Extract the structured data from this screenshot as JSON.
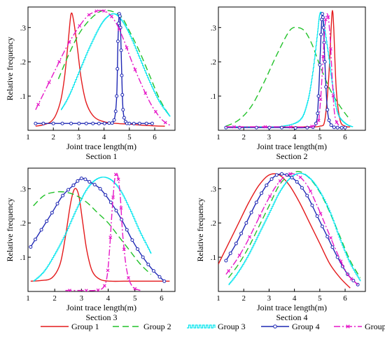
{
  "figure": {
    "legend_position": "bottom"
  },
  "legend": [
    {
      "name": "Group 1",
      "color": "#e41a1c",
      "dash": "",
      "marker": "none"
    },
    {
      "name": "Group 2",
      "color": "#22c22a",
      "dash": "9,5",
      "marker": "none"
    },
    {
      "name": "Group 3",
      "color": "#00e5ee",
      "dash": "",
      "marker": "stairs"
    },
    {
      "name": "Group 4",
      "color": "#1f28b4",
      "dash": "",
      "marker": "circle"
    },
    {
      "name": "Group 5",
      "color": "#e619c8",
      "dash": "9,3,2,3",
      "marker": "x"
    }
  ],
  "chart_data": [
    {
      "type": "line",
      "title": "Section 1",
      "xlabel": "Joint trace length(m)",
      "ylabel": "Relative frequency",
      "xlim": [
        1,
        6.8
      ],
      "ylim": [
        0,
        0.36
      ],
      "xticks": [
        1,
        2,
        3,
        4,
        5,
        6
      ],
      "yticks": [
        0.1,
        0.2,
        0.3
      ],
      "grid": false,
      "series": [
        {
          "name": "Group 1",
          "x": [
            1.3,
            1.6,
            1.9,
            2.1,
            2.3,
            2.45,
            2.6,
            2.7,
            2.8,
            2.95,
            3.1,
            3.3,
            3.6,
            4.0,
            4.5,
            5.0,
            5.5,
            6.0,
            6.4
          ],
          "y": [
            0.012,
            0.016,
            0.025,
            0.045,
            0.09,
            0.16,
            0.27,
            0.34,
            0.32,
            0.24,
            0.15,
            0.08,
            0.04,
            0.025,
            0.02,
            0.018,
            0.015,
            0.013,
            0.012
          ]
        },
        {
          "name": "Group 2",
          "x": [
            2.2,
            2.6,
            3.0,
            3.4,
            3.8,
            4.1,
            4.4,
            4.7,
            5.0,
            5.4,
            5.8,
            6.2,
            6.6
          ],
          "y": [
            0.15,
            0.22,
            0.28,
            0.32,
            0.345,
            0.35,
            0.345,
            0.33,
            0.29,
            0.23,
            0.16,
            0.09,
            0.04
          ]
        },
        {
          "name": "Group 3",
          "x": [
            2.3,
            2.6,
            3.0,
            3.4,
            3.8,
            4.1,
            4.4,
            4.7,
            5.0,
            5.4,
            5.8,
            6.2,
            6.6
          ],
          "y": [
            0.06,
            0.1,
            0.17,
            0.24,
            0.3,
            0.33,
            0.34,
            0.32,
            0.28,
            0.21,
            0.14,
            0.08,
            0.04
          ]
        },
        {
          "name": "Group 4",
          "x": [
            1.3,
            2.0,
            2.7,
            3.3,
            3.8,
            4.2,
            4.4,
            4.5,
            4.55,
            4.6,
            4.65,
            4.7,
            4.75,
            4.85,
            5.0,
            5.4,
            5.9
          ],
          "y": [
            0.02,
            0.02,
            0.02,
            0.02,
            0.02,
            0.021,
            0.03,
            0.1,
            0.26,
            0.34,
            0.3,
            0.16,
            0.06,
            0.025,
            0.02,
            0.02,
            0.02
          ]
        },
        {
          "name": "Group 5",
          "x": [
            1.3,
            1.7,
            2.1,
            2.5,
            2.9,
            3.3,
            3.6,
            3.9,
            4.2,
            4.5,
            4.8,
            5.1,
            5.5,
            5.9,
            6.3,
            6.6
          ],
          "y": [
            0.06,
            0.12,
            0.18,
            0.24,
            0.29,
            0.33,
            0.345,
            0.35,
            0.34,
            0.31,
            0.26,
            0.2,
            0.13,
            0.07,
            0.03,
            0.015
          ]
        }
      ]
    },
    {
      "type": "line",
      "title": "Section 2",
      "xlabel": "Joint trace length(m)",
      "ylabel": "",
      "xlim": [
        1,
        6.8
      ],
      "ylim": [
        0,
        0.36
      ],
      "xticks": [
        1,
        2,
        3,
        4,
        5,
        6
      ],
      "yticks": [
        0.1,
        0.2,
        0.3
      ],
      "grid": false,
      "series": [
        {
          "name": "Group 1",
          "x": [
            1.3,
            2.5,
            3.5,
            4.5,
            5.0,
            5.2,
            5.35,
            5.45,
            5.5,
            5.55,
            5.65,
            5.8,
            6.0,
            6.2
          ],
          "y": [
            0.01,
            0.01,
            0.01,
            0.01,
            0.012,
            0.03,
            0.15,
            0.3,
            0.35,
            0.3,
            0.12,
            0.03,
            0.012,
            0.01
          ]
        },
        {
          "name": "Group 2",
          "x": [
            1.3,
            1.8,
            2.3,
            2.8,
            3.3,
            3.8,
            4.1,
            4.4,
            4.7,
            5.0,
            5.4,
            5.8,
            6.2
          ],
          "y": [
            0.012,
            0.03,
            0.07,
            0.14,
            0.22,
            0.29,
            0.3,
            0.29,
            0.25,
            0.19,
            0.12,
            0.07,
            0.03
          ]
        },
        {
          "name": "Group 3",
          "x": [
            1.3,
            2.5,
            3.5,
            4.2,
            4.5,
            4.7,
            4.9,
            5.0,
            5.1,
            5.3,
            5.5,
            5.7,
            6.0,
            6.3
          ],
          "y": [
            0.01,
            0.01,
            0.012,
            0.03,
            0.08,
            0.16,
            0.28,
            0.34,
            0.33,
            0.24,
            0.13,
            0.05,
            0.02,
            0.01
          ]
        },
        {
          "name": "Group 4",
          "x": [
            1.3,
            2.5,
            3.5,
            4.5,
            4.85,
            4.95,
            5.05,
            5.1,
            5.15,
            5.2,
            5.3,
            5.45,
            5.7,
            6.0
          ],
          "y": [
            0.008,
            0.008,
            0.008,
            0.008,
            0.02,
            0.1,
            0.28,
            0.34,
            0.3,
            0.2,
            0.06,
            0.015,
            0.008,
            0.008
          ]
        },
        {
          "name": "Group 5",
          "x": [
            1.3,
            2.5,
            3.5,
            4.5,
            4.9,
            5.0,
            5.1,
            5.2,
            5.3,
            5.4,
            5.5,
            5.6,
            5.8
          ],
          "y": [
            0.01,
            0.01,
            0.01,
            0.01,
            0.02,
            0.06,
            0.17,
            0.3,
            0.34,
            0.28,
            0.14,
            0.04,
            0.01
          ]
        }
      ]
    },
    {
      "type": "line",
      "title": "Section 3",
      "xlabel": "Joint trace length(m)",
      "ylabel": "Relative frequency",
      "xlim": [
        1,
        6.5
      ],
      "ylim": [
        0,
        0.36
      ],
      "xticks": [
        1,
        2,
        3,
        4,
        5,
        6
      ],
      "yticks": [
        0.1,
        0.2,
        0.3
      ],
      "grid": false,
      "series": [
        {
          "name": "Group 1",
          "x": [
            1.1,
            1.5,
            1.9,
            2.2,
            2.4,
            2.6,
            2.75,
            2.9,
            3.05,
            3.2,
            3.4,
            3.7,
            4.1,
            4.6,
            5.2,
            5.8,
            6.3
          ],
          "y": [
            0.03,
            0.032,
            0.04,
            0.08,
            0.16,
            0.26,
            0.3,
            0.28,
            0.2,
            0.12,
            0.06,
            0.035,
            0.03,
            0.03,
            0.03,
            0.03,
            0.03
          ]
        },
        {
          "name": "Group 2",
          "x": [
            1.2,
            1.6,
            2.0,
            2.4,
            2.8,
            3.2,
            3.6,
            4.0,
            4.4,
            4.8,
            5.2,
            5.6
          ],
          "y": [
            0.25,
            0.28,
            0.29,
            0.29,
            0.28,
            0.26,
            0.23,
            0.2,
            0.16,
            0.12,
            0.08,
            0.05
          ]
        },
        {
          "name": "Group 3",
          "x": [
            1.2,
            1.6,
            2.0,
            2.4,
            2.8,
            3.2,
            3.6,
            4.0,
            4.4,
            4.8,
            5.2,
            5.6
          ],
          "y": [
            0.03,
            0.06,
            0.11,
            0.17,
            0.24,
            0.3,
            0.33,
            0.33,
            0.3,
            0.24,
            0.17,
            0.11
          ]
        },
        {
          "name": "Group 4",
          "x": [
            1.1,
            1.5,
            1.9,
            2.3,
            2.7,
            3.0,
            3.3,
            3.7,
            4.1,
            4.5,
            4.9,
            5.3,
            5.7,
            6.1
          ],
          "y": [
            0.13,
            0.18,
            0.23,
            0.28,
            0.31,
            0.33,
            0.32,
            0.3,
            0.26,
            0.21,
            0.15,
            0.1,
            0.06,
            0.03
          ]
        },
        {
          "name": "Group 5",
          "x": [
            2.4,
            3.0,
            3.5,
            3.8,
            3.95,
            4.05,
            4.15,
            4.25,
            4.35,
            4.45,
            4.55,
            4.7,
            4.9,
            5.2
          ],
          "y": [
            0.003,
            0.003,
            0.003,
            0.01,
            0.04,
            0.12,
            0.24,
            0.33,
            0.34,
            0.28,
            0.16,
            0.06,
            0.015,
            0.003
          ]
        }
      ]
    },
    {
      "type": "line",
      "title": "Section 4",
      "xlabel": "Joint trace length(m)",
      "ylabel": "Relative frequency",
      "xlim": [
        1,
        6.8
      ],
      "ylim": [
        0,
        0.36
      ],
      "xticks": [
        1,
        2,
        3,
        4,
        5,
        6
      ],
      "yticks": [
        0.1,
        0.2,
        0.3
      ],
      "grid": false,
      "series": [
        {
          "name": "Group 1",
          "x": [
            1.0,
            1.4,
            1.8,
            2.2,
            2.6,
            3.0,
            3.4,
            3.8,
            4.2,
            4.6,
            5.0,
            5.4,
            5.8,
            6.2
          ],
          "y": [
            0.08,
            0.14,
            0.2,
            0.26,
            0.31,
            0.34,
            0.34,
            0.31,
            0.26,
            0.2,
            0.14,
            0.08,
            0.04,
            0.01
          ]
        },
        {
          "name": "Group 2",
          "x": [
            1.4,
            1.8,
            2.2,
            2.6,
            3.0,
            3.4,
            3.8,
            4.2,
            4.6,
            5.0,
            5.4,
            5.8,
            6.2,
            6.6
          ],
          "y": [
            0.04,
            0.08,
            0.13,
            0.19,
            0.25,
            0.31,
            0.34,
            0.35,
            0.33,
            0.29,
            0.23,
            0.16,
            0.09,
            0.04
          ]
        },
        {
          "name": "Group 3",
          "x": [
            1.4,
            1.8,
            2.2,
            2.6,
            3.0,
            3.4,
            3.8,
            4.2,
            4.6,
            5.0,
            5.4,
            5.8,
            6.2,
            6.6
          ],
          "y": [
            0.02,
            0.06,
            0.11,
            0.17,
            0.23,
            0.29,
            0.33,
            0.345,
            0.33,
            0.29,
            0.23,
            0.15,
            0.08,
            0.03
          ]
        },
        {
          "name": "Group 4",
          "x": [
            1.3,
            1.7,
            2.1,
            2.5,
            2.9,
            3.3,
            3.7,
            4.1,
            4.5,
            4.9,
            5.3,
            5.7,
            6.1,
            6.5
          ],
          "y": [
            0.09,
            0.14,
            0.2,
            0.26,
            0.31,
            0.34,
            0.34,
            0.32,
            0.28,
            0.22,
            0.16,
            0.1,
            0.05,
            0.02
          ]
        },
        {
          "name": "Group 5",
          "x": [
            1.3,
            1.7,
            2.1,
            2.5,
            2.9,
            3.3,
            3.7,
            4.1,
            4.5,
            4.9,
            5.3,
            5.7,
            6.1,
            6.5
          ],
          "y": [
            0.05,
            0.09,
            0.14,
            0.2,
            0.26,
            0.31,
            0.34,
            0.34,
            0.31,
            0.25,
            0.18,
            0.11,
            0.05,
            0.02
          ]
        }
      ]
    }
  ]
}
